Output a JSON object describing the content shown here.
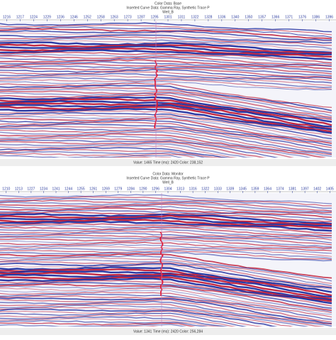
{
  "panels": [
    {
      "header": {
        "color_data": "Color Data: Base",
        "curve_data": "Inserted Curve Data: Gamma Ray, Synthetic Trace P",
        "well": "Well_B"
      },
      "traces": [
        "1216",
        "1217",
        "1224",
        "1229",
        "1236",
        "1246",
        "1252",
        "1258",
        "1263",
        "1273",
        "1287",
        "1295",
        "1301",
        "1311",
        "1322",
        "1328",
        "1336",
        "1340",
        "1350",
        "1357",
        "1366",
        "1371",
        "1376",
        "1386",
        "1396"
      ],
      "status": "Value: 1465  Time (ms): 2420  Color: 238,152"
    },
    {
      "header": {
        "color_data": "Color Data: Monitor",
        "curve_data": "Inserted Curve Data: Gamma Ray, Synthetic Trace P",
        "well": "Well_B"
      },
      "traces": [
        "1210",
        "1213",
        "1227",
        "1234",
        "1241",
        "1244",
        "1255",
        "1261",
        "1269",
        "1279",
        "1284",
        "1290",
        "1296",
        "1304",
        "1313",
        "1316",
        "1322",
        "1333",
        "1339",
        "1345",
        "1359",
        "1364",
        "1374",
        "1381",
        "1397",
        "1402",
        "1405"
      ],
      "status": "Value: 1341  Time (ms): 2420  Color: 256,284"
    }
  ]
}
